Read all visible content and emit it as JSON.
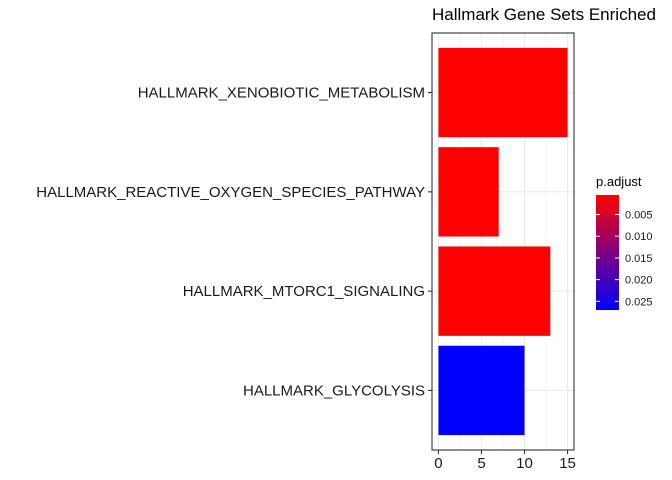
{
  "chart_data": {
    "type": "bar",
    "orientation": "horizontal",
    "title": "Hallmark Gene Sets Enriched",
    "xlabel": "",
    "ylabel": "",
    "categories": [
      "HALLMARK_XENOBIOTIC_METABOLISM",
      "HALLMARK_REACTIVE_OXYGEN_SPECIES_PATHWAY",
      "HALLMARK_MTORC1_SIGNALING",
      "HALLMARK_GLYCOLYSIS"
    ],
    "values": [
      15,
      7,
      13,
      10
    ],
    "p_adjust": [
      0.0005,
      0.0005,
      0.0005,
      0.027
    ],
    "xlim": [
      -0.75,
      15.75
    ],
    "x_ticks": [
      0,
      5,
      10,
      15
    ],
    "grid": true,
    "legend": {
      "title": "p.adjust",
      "placement": "right",
      "range": [
        0.0005,
        0.027
      ],
      "ticks": [
        0.005,
        0.01,
        0.015,
        0.02,
        0.025
      ],
      "tick_labels": [
        "0.005",
        "0.010",
        "0.015",
        "0.020",
        "0.025"
      ],
      "low_color": "#ff0000",
      "high_color": "#0000ff"
    },
    "colors": {
      "panel_border": "#333333",
      "grid": "#ebebeb",
      "text": "#000000",
      "axis_text": "#1a1a1a"
    }
  }
}
